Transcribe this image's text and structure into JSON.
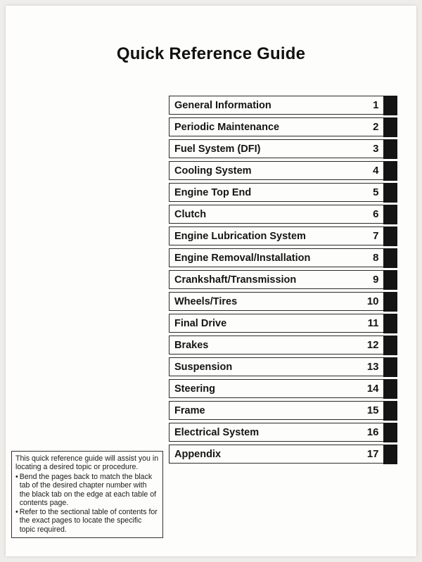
{
  "title": "Quick Reference Guide",
  "toc": [
    {
      "label": "General Information",
      "num": "1"
    },
    {
      "label": "Periodic Maintenance",
      "num": "2"
    },
    {
      "label": "Fuel System (DFI)",
      "num": "3"
    },
    {
      "label": "Cooling System",
      "num": "4"
    },
    {
      "label": "Engine Top End",
      "num": "5"
    },
    {
      "label": "Clutch",
      "num": "6"
    },
    {
      "label": "Engine Lubrication System",
      "num": "7"
    },
    {
      "label": "Engine Removal/Installation",
      "num": "8"
    },
    {
      "label": "Crankshaft/Transmission",
      "num": "9"
    },
    {
      "label": "Wheels/Tires",
      "num": "10"
    },
    {
      "label": "Final Drive",
      "num": "11"
    },
    {
      "label": "Brakes",
      "num": "12"
    },
    {
      "label": "Suspension",
      "num": "13"
    },
    {
      "label": "Steering",
      "num": "14"
    },
    {
      "label": "Frame",
      "num": "15"
    },
    {
      "label": "Electrical System",
      "num": "16"
    },
    {
      "label": "Appendix",
      "num": "17"
    }
  ],
  "note": {
    "intro": "This quick reference guide will assist you in locating a desired topic or procedure.",
    "bullet1": "Bend the pages back to match the black tab of the desired chapter number with the black tab on the edge at each table of contents page.",
    "bullet2": "Refer to the sectional table of contents for the exact pages to locate the specific topic required."
  }
}
